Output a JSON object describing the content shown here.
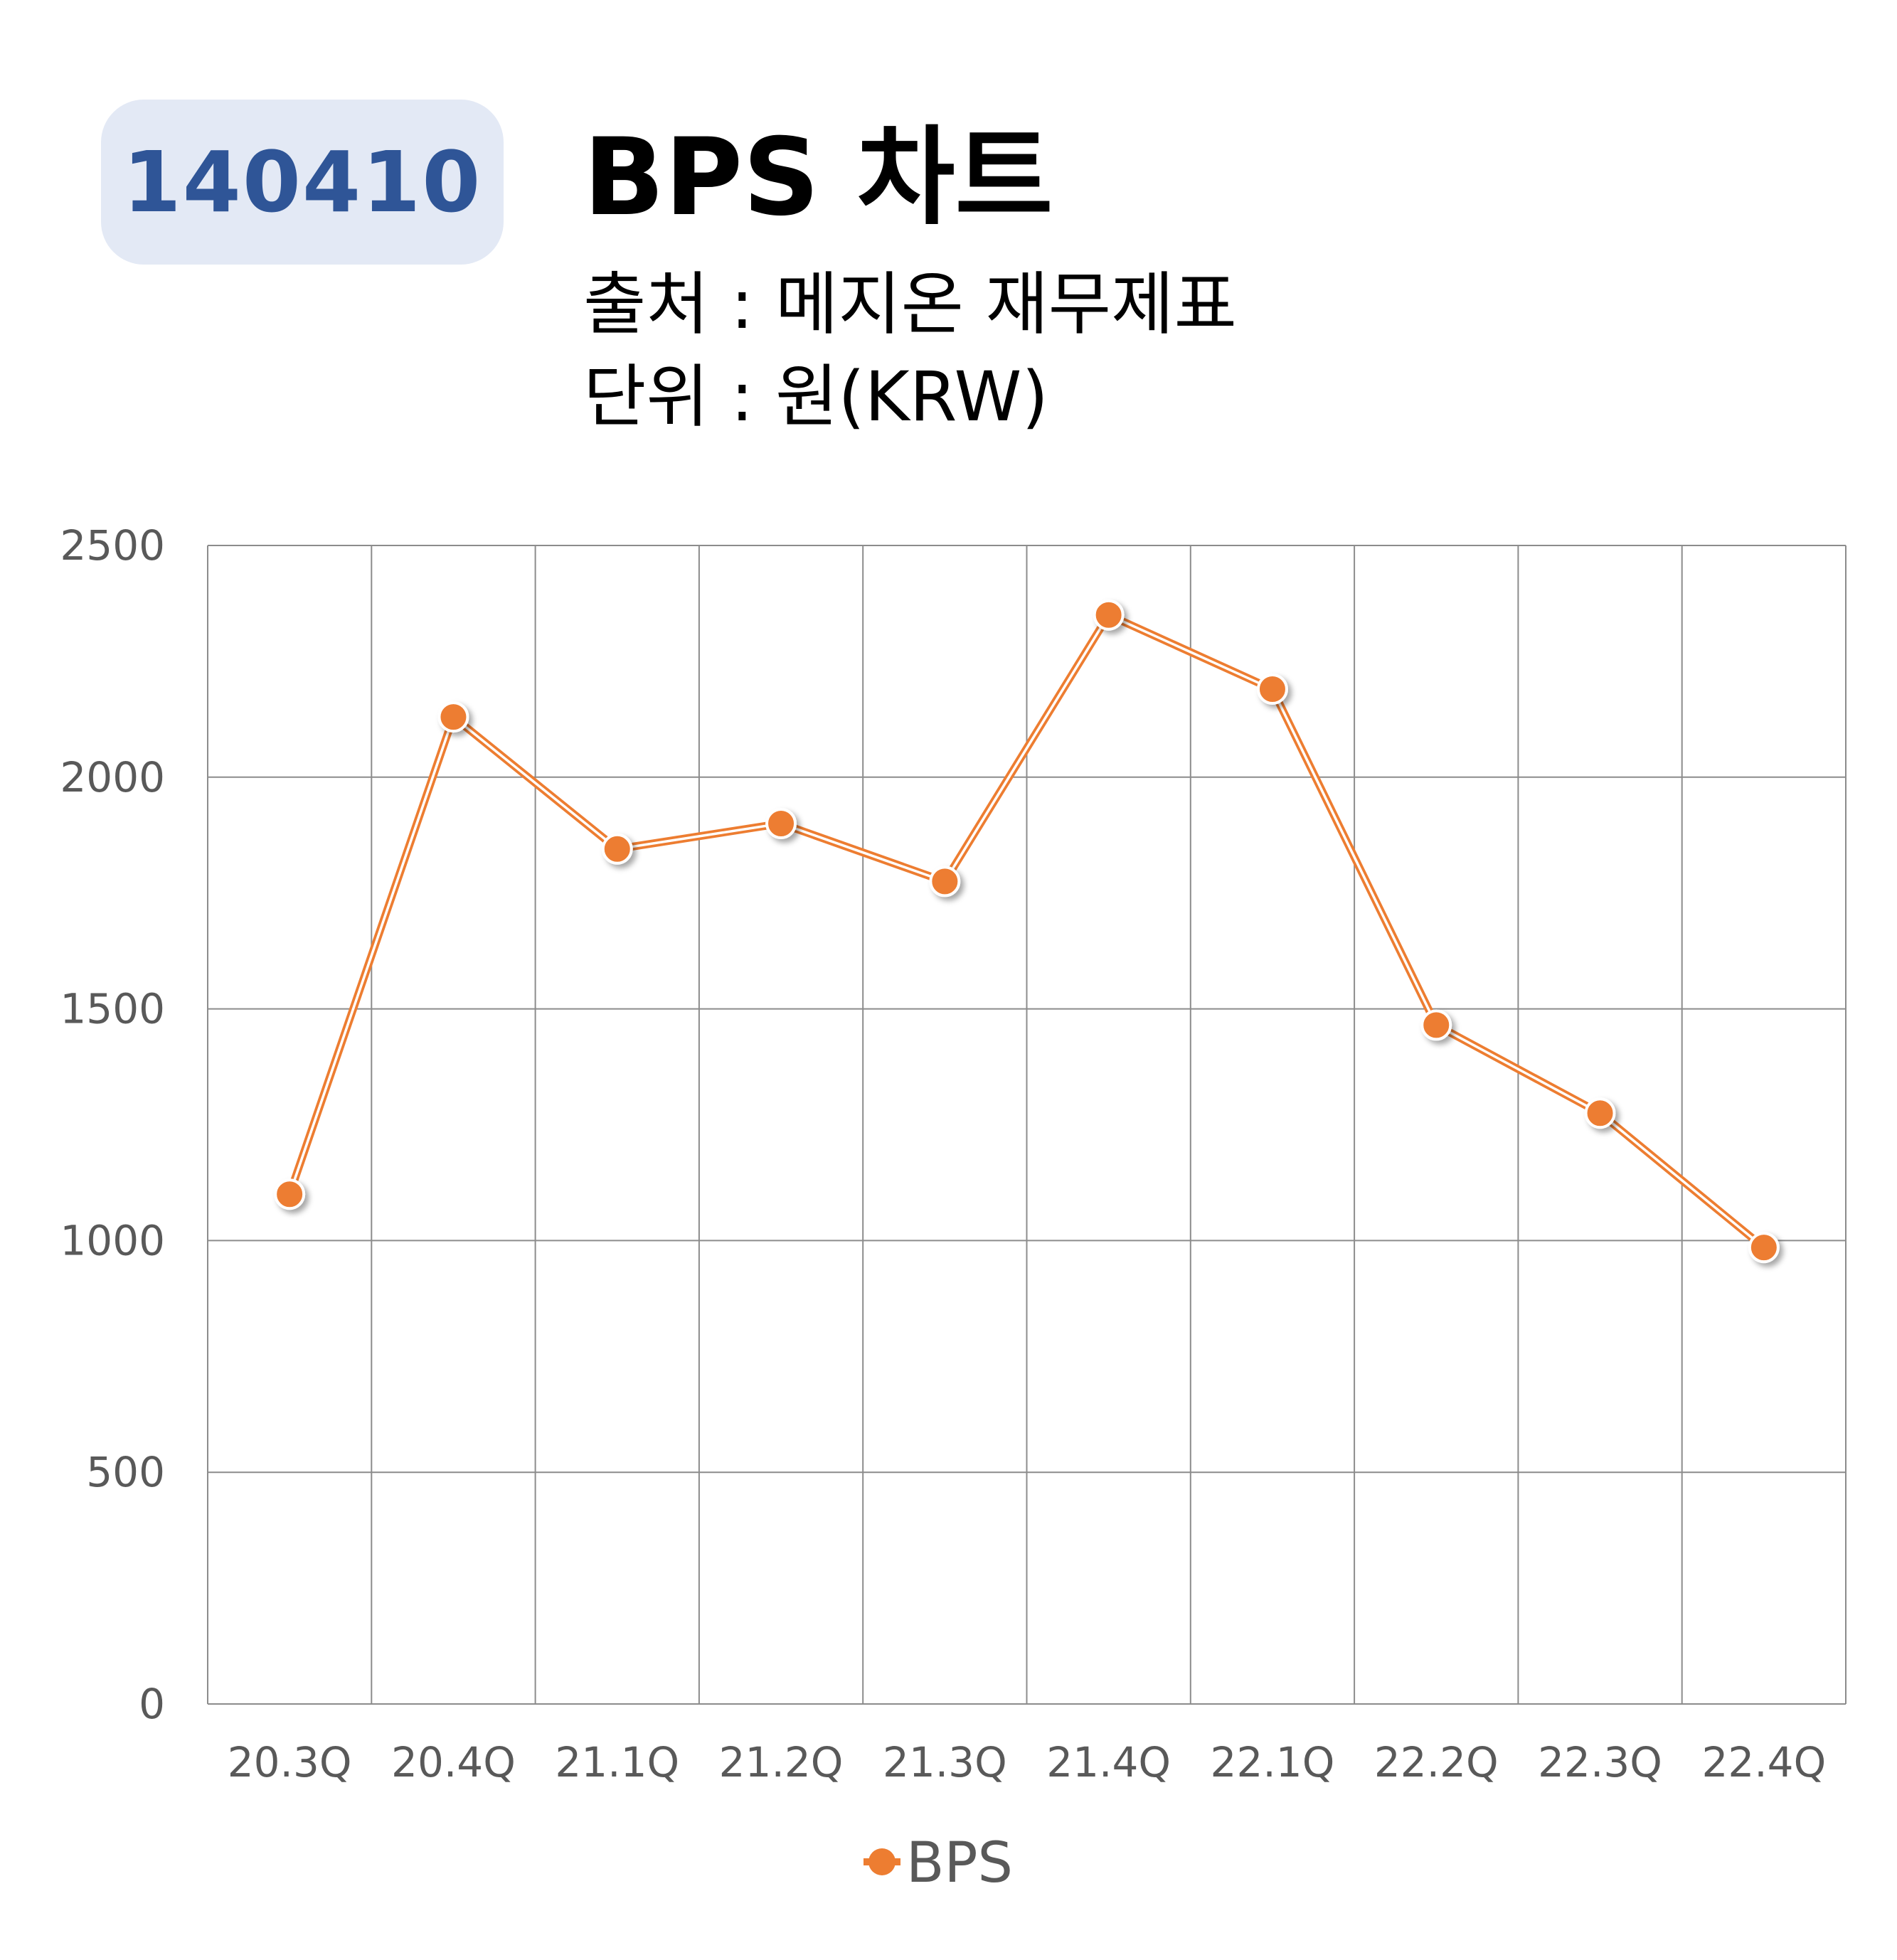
{
  "header": {
    "code": "140410",
    "title": "BPS 차트",
    "source": "출처 : 메지온 재무제표",
    "unit": "단위 : 원(KRW)"
  },
  "colors": {
    "accent": "#ed7d31",
    "badge_bg": "#e3e9f5",
    "badge_text": "#2f5597",
    "grid": "#8c8c8c",
    "axis_text": "#595959"
  },
  "chart_data": {
    "type": "line",
    "categories": [
      "20.3Q",
      "20.4Q",
      "21.1Q",
      "21.2Q",
      "21.3Q",
      "21.4Q",
      "22.1Q",
      "22.2Q",
      "22.3Q",
      "22.4Q"
    ],
    "series": [
      {
        "name": "BPS",
        "values": [
          1100,
          2130,
          1845,
          1900,
          1775,
          2350,
          2190,
          1465,
          1275,
          985
        ]
      }
    ],
    "y_ticks": [
      0,
      500,
      1000,
      1500,
      2000,
      2500
    ],
    "ylim": [
      0,
      2500
    ],
    "grid": true,
    "legend": "bottom",
    "marker": "circle"
  }
}
